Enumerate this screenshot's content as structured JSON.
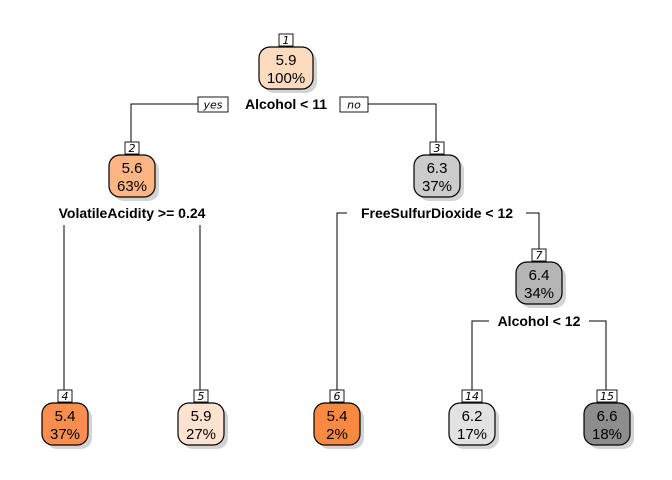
{
  "tree": {
    "branch_labels": {
      "yes": "yes",
      "no": "no"
    },
    "nodes": [
      {
        "id": "1",
        "value": "5.9",
        "percent": "100%",
        "fill": "#fddbbf"
      },
      {
        "id": "2",
        "value": "5.6",
        "percent": "63%",
        "fill": "#fdb583"
      },
      {
        "id": "3",
        "value": "6.3",
        "percent": "37%",
        "fill": "#cccccc"
      },
      {
        "id": "4",
        "value": "5.4",
        "percent": "37%",
        "fill": "#f98e4f"
      },
      {
        "id": "5",
        "value": "5.9",
        "percent": "27%",
        "fill": "#fde3cf"
      },
      {
        "id": "6",
        "value": "5.4",
        "percent": "2%",
        "fill": "#f98940"
      },
      {
        "id": "7",
        "value": "6.4",
        "percent": "34%",
        "fill": "#b5b5b5"
      },
      {
        "id": "14",
        "value": "6.2",
        "percent": "17%",
        "fill": "#e2e2e2"
      },
      {
        "id": "15",
        "value": "6.6",
        "percent": "18%",
        "fill": "#8d8d8d"
      }
    ],
    "splits": [
      {
        "node": "1",
        "label": "Alcohol < 11"
      },
      {
        "node": "2",
        "label": "VolatileAcidity >= 0.24"
      },
      {
        "node": "3",
        "label": "FreeSulfurDioxide < 12"
      },
      {
        "node": "7",
        "label": "Alcohol < 12"
      }
    ]
  }
}
